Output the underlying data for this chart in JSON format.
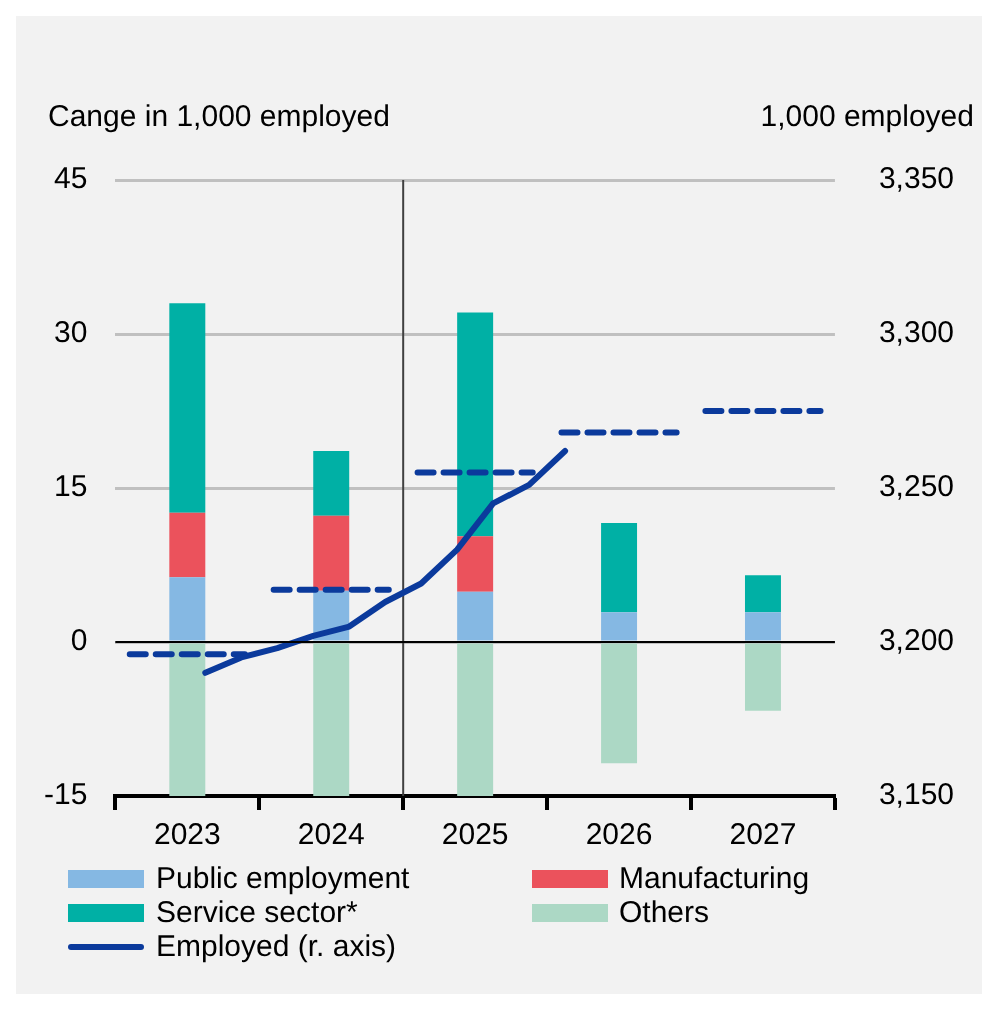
{
  "chart_data": {
    "type": "bar",
    "ylabel": "Cange in 1,000 employed",
    "y2label": "1,000 employed",
    "x": [
      2023,
      2024,
      2025,
      2026,
      2027
    ],
    "stacked": true,
    "series": [
      {
        "name": "Public employment",
        "color": "#85b8e3",
        "values": [
          6.3,
          5.0,
          4.9,
          2.9,
          2.9
        ]
      },
      {
        "name": "Manufacturing",
        "color": "#eb525c",
        "values": [
          6.3,
          7.3,
          5.4,
          0,
          0
        ]
      },
      {
        "name": "Service sector*",
        "color": "#00b0a5",
        "values": [
          20.4,
          6.3,
          21.8,
          8.7,
          3.6
        ]
      },
      {
        "name": "Others",
        "color": "#acd8c5",
        "values": [
          -15,
          -15,
          -15,
          -11.8,
          -6.7
        ]
      },
      {
        "name": "Employed (r. axis)",
        "type": "line",
        "axis": "y2",
        "color": "#0b3a9c",
        "line_style": "solid",
        "x": [
          2023.125,
          2023.375,
          2023.625,
          2023.875,
          2024.125,
          2024.375,
          2024.625,
          2024.875,
          2025.125,
          2025.375,
          2025.625
        ],
        "values": [
          3190,
          3195,
          3198,
          3202,
          3205,
          3213,
          3219,
          3230,
          3245,
          3251,
          3262
        ]
      },
      {
        "type": "line",
        "axis": "y2",
        "color": "#0b3a9c",
        "line_style": "dashed",
        "x": [
          2022.6,
          2023.4,
          2023.5,
          2023.6,
          2024.4,
          2024.5,
          2024.6,
          2025.4,
          2025.5,
          2025.6,
          2026.4,
          2026.5,
          2026.6,
          2027.4
        ],
        "values": [
          3196,
          3196,
          null,
          3217,
          3217,
          null,
          3255,
          3255,
          null,
          3268,
          3268,
          null,
          3275,
          3275
        ]
      }
    ],
    "xlim": [
      2022.5,
      2027.5
    ],
    "xticks": [
      {
        "value": 2022.5,
        "label": null
      },
      2023,
      {
        "value": 2023.5,
        "label": null
      },
      2024,
      {
        "value": 2024.5,
        "label": null
      },
      2025,
      {
        "value": 2025.5,
        "label": null
      },
      2026,
      {
        "value": 2026.5,
        "label": null
      },
      2027,
      {
        "value": 2027.5,
        "label": null
      }
    ],
    "ylim": [
      -15,
      45
    ],
    "yticks": [
      -15,
      0,
      15,
      30,
      45
    ],
    "y2lim": [
      3150,
      3350
    ],
    "y2ticks": [
      {
        "value": 3150,
        "label": "3,150"
      },
      {
        "value": 3200,
        "label": "3,200"
      },
      {
        "value": 3250,
        "label": "3,250"
      },
      {
        "value": 3300,
        "label": "3,300"
      },
      {
        "value": 3350,
        "label": "3,350"
      }
    ],
    "ref_lines": [
      {
        "axis": "x",
        "value": 2024.5,
        "color": "#404040"
      }
    ],
    "grid": "y",
    "legend": "bottom"
  }
}
